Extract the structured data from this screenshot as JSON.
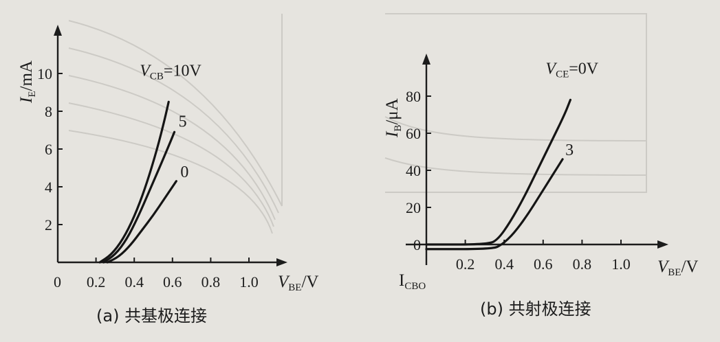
{
  "chart_data": [
    {
      "type": "line",
      "caption": "(a) 共基极连接",
      "ylabel_main": "I",
      "ylabel_sub": "E",
      "ylabel_unit": "/mA",
      "xlabel_main": "V",
      "xlabel_sub": "BE",
      "xlabel_unit": "/V",
      "origin_label": "0",
      "x_ticks": [
        0.2,
        0.4,
        0.6,
        0.8,
        1.0
      ],
      "x_tick_labels": [
        "0.2",
        "0.4",
        "0.6",
        "0.8",
        "1.0"
      ],
      "y_ticks": [
        2,
        4,
        6,
        8,
        10
      ],
      "y_tick_labels": [
        "2",
        "4",
        "6",
        "8",
        "10"
      ],
      "xlim": [
        0,
        1.2
      ],
      "ylim": [
        0,
        12
      ],
      "series": [
        {
          "name": "V_CB=10V",
          "label_main": "V",
          "label_sub": "CB",
          "label_rest": "=10V",
          "points": [
            [
              0.22,
              0
            ],
            [
              0.28,
              0.4
            ],
            [
              0.34,
              1.2
            ],
            [
              0.4,
              2.4
            ],
            [
              0.46,
              4.0
            ],
            [
              0.52,
              6.0
            ],
            [
              0.56,
              7.6
            ],
            [
              0.58,
              8.5
            ]
          ]
        },
        {
          "name": "5",
          "label_main": "5",
          "label_sub": "",
          "label_rest": "",
          "points": [
            [
              0.24,
              0
            ],
            [
              0.3,
              0.4
            ],
            [
              0.36,
              1.2
            ],
            [
              0.42,
              2.4
            ],
            [
              0.48,
              3.8
            ],
            [
              0.54,
              5.2
            ],
            [
              0.59,
              6.4
            ],
            [
              0.61,
              6.9
            ]
          ]
        },
        {
          "name": "0",
          "label_main": "0",
          "label_sub": "",
          "label_rest": "",
          "points": [
            [
              0.26,
              0
            ],
            [
              0.32,
              0.3
            ],
            [
              0.38,
              0.9
            ],
            [
              0.44,
              1.7
            ],
            [
              0.5,
              2.5
            ],
            [
              0.56,
              3.4
            ],
            [
              0.6,
              4.0
            ],
            [
              0.62,
              4.3
            ]
          ]
        }
      ]
    },
    {
      "type": "line",
      "caption": "(b) 共射极连接",
      "ylabel_main": "I",
      "ylabel_sub": "B",
      "ylabel_unit": "/μA",
      "xlabel_main": "V",
      "xlabel_sub": "BE",
      "xlabel_unit": "/V",
      "below_axis_label_main": "I",
      "below_axis_label_sub": "CBO",
      "x_ticks": [
        0.2,
        0.4,
        0.6,
        0.8,
        1.0
      ],
      "x_tick_labels": [
        "0.2",
        "0.4",
        "0.6",
        "0.8",
        "1.0"
      ],
      "y_ticks": [
        0,
        20,
        40,
        60,
        80
      ],
      "y_tick_labels": [
        "0",
        "20",
        "40",
        "60",
        "80"
      ],
      "xlim": [
        0,
        1.2
      ],
      "ylim": [
        -5,
        100
      ],
      "series": [
        {
          "name": "V_CE=0V",
          "label_main": "V",
          "label_sub": "CE",
          "label_rest": "=0V",
          "points": [
            [
              0,
              0
            ],
            [
              0.32,
              0
            ],
            [
              0.37,
              3
            ],
            [
              0.43,
              12
            ],
            [
              0.5,
              25
            ],
            [
              0.57,
              40
            ],
            [
              0.64,
              55
            ],
            [
              0.71,
              70
            ],
            [
              0.74,
              78
            ]
          ]
        },
        {
          "name": "3",
          "label_main": "3",
          "label_sub": "",
          "label_rest": "",
          "points": [
            [
              0,
              -2.5
            ],
            [
              0.34,
              -2.5
            ],
            [
              0.39,
              0
            ],
            [
              0.45,
              6
            ],
            [
              0.52,
              16
            ],
            [
              0.58,
              26
            ],
            [
              0.64,
              36
            ],
            [
              0.7,
              46
            ]
          ]
        }
      ]
    }
  ]
}
